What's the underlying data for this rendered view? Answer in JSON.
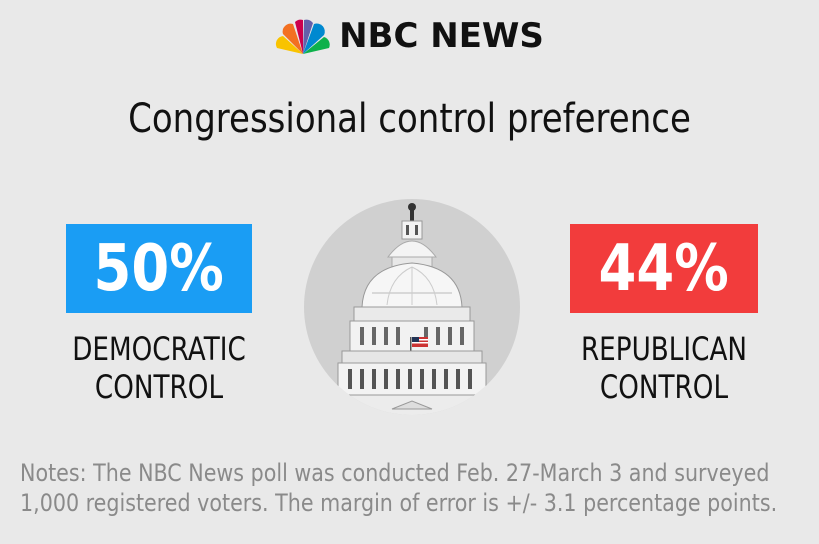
{
  "header": {
    "brand": "NBC NEWS",
    "logo_icon": "nbc-peacock-icon"
  },
  "chart_data": {
    "type": "bar",
    "title": "Congressional control preference",
    "categories": [
      "DEMOCRATIC CONTROL",
      "REPUBLICAN CONTROL"
    ],
    "values": [
      50,
      44
    ],
    "value_labels": [
      "50%",
      "44%"
    ],
    "label_lines": [
      [
        "DEMOCRATIC",
        "CONTROL"
      ],
      [
        "REPUBLICAN",
        "CONTROL"
      ]
    ],
    "colors": [
      "#1a9df4",
      "#f23c3c"
    ],
    "unit": "%"
  },
  "center_image": {
    "icon": "capitol-dome-icon"
  },
  "notes": {
    "line1": "Notes: The NBC News poll was conducted Feb. 27-March 3 and surveyed",
    "line2": "1,000 registered voters. The margin of error is +/- 3.1 percentage points."
  }
}
